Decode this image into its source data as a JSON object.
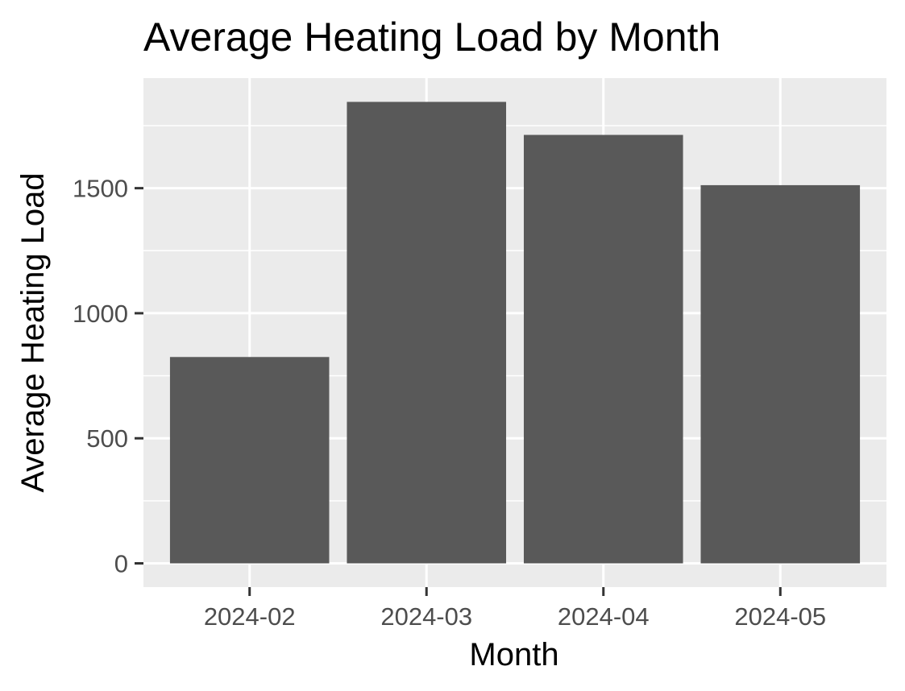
{
  "chart_data": {
    "type": "bar",
    "title": "Average Heating Load by Month",
    "xlabel": "Month",
    "ylabel": "Average Heating Load",
    "categories": [
      "2024-02",
      "2024-03",
      "2024-04",
      "2024-05"
    ],
    "values": [
      825,
      1845,
      1713,
      1512
    ],
    "ylim": [
      -95,
      1940
    ],
    "yticks": [
      0,
      500,
      1000,
      1500
    ],
    "ytick_labels": [
      "0",
      "500",
      "1000",
      "1500"
    ],
    "grid": true,
    "legend": "none",
    "colors": {
      "bar": "#595959",
      "panel": "#ebebeb",
      "grid": "#ffffff",
      "tick": "#333333"
    }
  }
}
